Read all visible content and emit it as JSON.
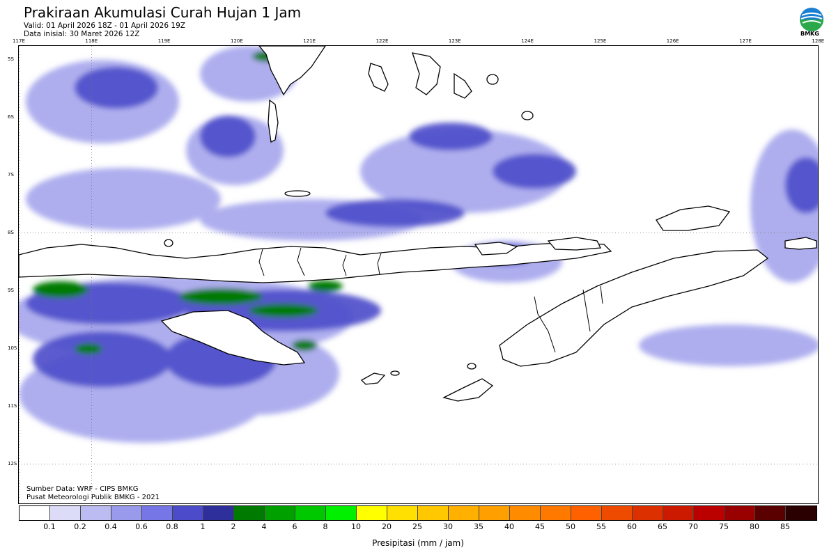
{
  "header": {
    "title": "Prakiraan Akumulasi Curah Hujan 1 Jam",
    "valid": "Valid: 01 April 2026 18Z - 01 April 2026 19Z",
    "initial": "Data inisial: 30 Maret 2026 12Z"
  },
  "logo": {
    "text": "BMKG",
    "icon": "bmkg-logo-icon"
  },
  "axes": {
    "lon_labels": [
      "117E",
      "118E",
      "119E",
      "120E",
      "121E",
      "122E",
      "123E",
      "124E",
      "125E",
      "126E",
      "127E",
      "128E"
    ],
    "lat_labels": [
      "5S",
      "6S",
      "7S",
      "8S",
      "9S",
      "10S",
      "11S",
      "12S"
    ]
  },
  "footer": {
    "source": "Sumber Data: WRF - CIPS BMKG",
    "center": "Pusat Meteorologi Publik BMKG - 2021",
    "unit_label": "Presipitasi (mm / jam)"
  },
  "legend": {
    "ticks": [
      "0.1",
      "0.2",
      "0.4",
      "0.6",
      "0.8",
      "1",
      "2",
      "4",
      "6",
      "8",
      "10",
      "20",
      "25",
      "30",
      "35",
      "40",
      "45",
      "50",
      "55",
      "60",
      "65",
      "70",
      "75",
      "80",
      "85"
    ],
    "colors": [
      "#ffffff",
      "#dcdcf8",
      "#bcbcf2",
      "#9a9aec",
      "#7676e6",
      "#4c4cca",
      "#2f2f9c",
      "#007a00",
      "#00a000",
      "#00c800",
      "#00f000",
      "#ffff00",
      "#ffe000",
      "#ffc800",
      "#ffb000",
      "#ffa000",
      "#ff8c00",
      "#ff7800",
      "#ff6000",
      "#ee4a00",
      "#dd3000",
      "#cc1a00",
      "#bb0000",
      "#990000",
      "#5a0000",
      "#2a0000"
    ]
  }
}
